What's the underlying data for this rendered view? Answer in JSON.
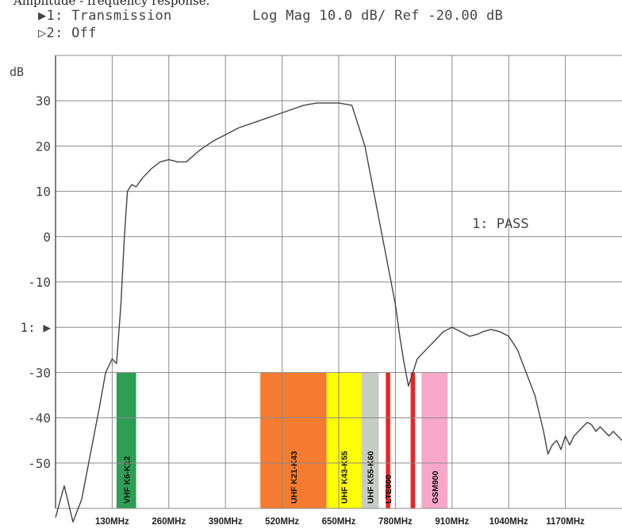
{
  "caption": "Amplitude - frequency response.",
  "header": {
    "trace1": "▶1: Transmission",
    "trace2": "▷2: Off",
    "settings": "Log Mag   10.0 dB/ Ref -20.00 dB"
  },
  "pass_label": "1: PASS",
  "colors": {
    "grid": "#8a8a8a",
    "trace": "#444444",
    "vhf": "#2e9e55",
    "uhf_k21_k43": "#f47b30",
    "uhf_k43_k55": "#ffff00",
    "uhf_k55_k60": "#c8ccc6",
    "lte800": "#ee2222",
    "gsm900": "#f7a8c8"
  },
  "chart_data": {
    "type": "line",
    "title": "",
    "xlabel": "",
    "ylabel": "dB",
    "ylim": [
      -60,
      40
    ],
    "ytick_values": [
      30,
      20,
      10,
      0,
      -10,
      -20,
      -30,
      -40,
      -50
    ],
    "ytick_labels": [
      "30",
      "20",
      "10",
      "0",
      "-10",
      "1: ▶",
      "-30",
      "-40",
      "-50"
    ],
    "xlim": [
      0,
      1300
    ],
    "xtick_values": [
      130,
      260,
      390,
      520,
      650,
      780,
      910,
      1040,
      1170
    ],
    "xtick_labels": [
      "130MHz",
      "260MHz",
      "390MHz",
      "520MHz",
      "650MHz",
      "780MHz",
      "910MHz",
      "1040MHz",
      "1170MHz"
    ],
    "grid": true,
    "series": [
      {
        "x": [
          0,
          20,
          40,
          60,
          80,
          100,
          115,
          130,
          140,
          150,
          158,
          165,
          175,
          185,
          200,
          220,
          240,
          260,
          280,
          300,
          330,
          360,
          390,
          420,
          450,
          480,
          510,
          540,
          570,
          600,
          630,
          650,
          680,
          710,
          740,
          760,
          780,
          790,
          800,
          810,
          820,
          830,
          850,
          870,
          880,
          890,
          900,
          910,
          930,
          950,
          970,
          980,
          1000,
          1020,
          1040,
          1060,
          1080,
          1100,
          1110,
          1120,
          1130,
          1140,
          1150,
          1160,
          1170,
          1180,
          1190,
          1200,
          1210,
          1220,
          1230,
          1240,
          1250,
          1260,
          1270,
          1280,
          1290,
          1300
        ],
        "y": [
          -62,
          -55,
          -63,
          -58,
          -48,
          -38,
          -30,
          -27,
          -28,
          -15,
          0,
          10,
          11.5,
          11,
          13,
          15,
          16.5,
          17,
          16.5,
          16.5,
          19,
          21,
          22.5,
          24,
          25,
          26,
          27,
          28,
          29,
          29.5,
          29.5,
          29.5,
          29,
          20,
          5,
          -5,
          -15,
          -22,
          -28,
          -33,
          -30,
          -27,
          -25,
          -23,
          -22,
          -21,
          -20.5,
          -20,
          -21,
          -22,
          -21.5,
          -21,
          -20.5,
          -21,
          -22,
          -25,
          -30,
          -35,
          -39,
          -43,
          -48,
          -46,
          -45,
          -47,
          -44,
          -46,
          -44,
          -43,
          -42,
          -41,
          -41.5,
          -43,
          -42,
          -43,
          -44,
          -43,
          -44,
          -45
        ]
      }
    ],
    "bands": [
      {
        "label": "VHF K6-K12",
        "x0": 140,
        "x1": 185,
        "color": "#2e9e55"
      },
      {
        "label": "UHF K21-K43",
        "x0": 470,
        "x1": 622,
        "color": "#f47b30"
      },
      {
        "label": "UHF K43-K55",
        "x0": 622,
        "x1": 702,
        "color": "#ffff00"
      },
      {
        "label": "UHF K55-K60",
        "x0": 702,
        "x1": 742,
        "color": "#c8ccc6"
      },
      {
        "label": "LTE800",
        "x0": 758,
        "x1": 768,
        "color": "#ee2222"
      },
      {
        "label": "",
        "x0": 815,
        "x1": 825,
        "color": "#ee2222"
      },
      {
        "label": "GSM900",
        "x0": 840,
        "x1": 900,
        "color": "#f7a8c8"
      }
    ],
    "band_ylim": [
      -30,
      -60
    ]
  }
}
